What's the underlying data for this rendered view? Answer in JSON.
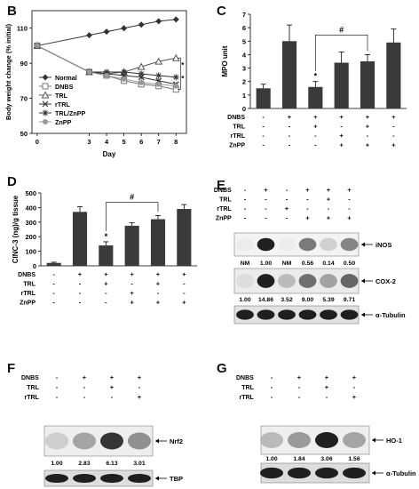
{
  "panels": {
    "B": {
      "label": "B",
      "chart_data": {
        "type": "line",
        "x": [
          0,
          3,
          4,
          5,
          6,
          7,
          8
        ],
        "xlabel": "Day",
        "ylabel": "Body weight change (% initial)",
        "xlim": [
          -0.3,
          8.6
        ],
        "ylim": [
          50,
          120
        ],
        "yticks": [
          50,
          70,
          90,
          110
        ],
        "xticks": [
          0,
          3,
          4,
          5,
          6,
          7,
          8
        ],
        "series": [
          {
            "name": "Normal",
            "marker": "diamond",
            "values": [
              100,
              106,
              108,
              110,
              112,
              114,
              115
            ]
          },
          {
            "name": "DNBS",
            "marker": "square",
            "values": [
              100,
              85,
              83,
              80,
              78,
              77,
              75
            ]
          },
          {
            "name": "TRL",
            "marker": "triangle",
            "values": [
              100,
              85,
              84,
              85,
              88,
              91,
              93
            ]
          },
          {
            "name": "rTRL",
            "marker": "x",
            "values": [
              100,
              85,
              84,
              83,
              82,
              80,
              78
            ]
          },
          {
            "name": "TRL/ZnPP",
            "marker": "star",
            "values": [
              100,
              85,
              85,
              85,
              84,
              83,
              82
            ]
          },
          {
            "name": "ZnPP",
            "marker": "circle",
            "values": [
              100,
              85,
              83,
              81,
              79,
              78,
              77
            ]
          }
        ],
        "annotations": [
          "*",
          "*"
        ]
      }
    },
    "C": {
      "label": "C",
      "chart_data": {
        "type": "bar",
        "ylabel": "MPO unit",
        "ylim": [
          0,
          7
        ],
        "yticks": [
          0,
          1,
          2,
          3,
          4,
          5,
          6,
          7
        ],
        "values": [
          1.5,
          5.0,
          1.6,
          3.4,
          3.5,
          4.9
        ],
        "errors": [
          0.3,
          1.2,
          0.4,
          0.8,
          0.5,
          1.0
        ],
        "star_index": 2,
        "sig_bracket": {
          "from": 2,
          "to": 4,
          "label": "#"
        },
        "treatments": [
          {
            "name": "DNBS",
            "marks": [
              "-",
              "+",
              "+",
              "+",
              "+",
              "+"
            ]
          },
          {
            "name": "TRL",
            "marks": [
              "-",
              "-",
              "+",
              "-",
              "+",
              "-"
            ]
          },
          {
            "name": "rTRL",
            "marks": [
              "-",
              "-",
              "-",
              "+",
              "-",
              "-"
            ]
          },
          {
            "name": "ZnPP",
            "marks": [
              "-",
              "-",
              "-",
              "+",
              "+",
              "+"
            ]
          }
        ]
      }
    },
    "D": {
      "label": "D",
      "chart_data": {
        "type": "bar",
        "ylabel": "CINC-3 (ng)/g tissue",
        "ylim": [
          0,
          500
        ],
        "yticks": [
          0,
          100,
          200,
          300,
          400,
          500
        ],
        "values": [
          20,
          370,
          140,
          275,
          320,
          390
        ],
        "errors": [
          5,
          35,
          25,
          20,
          25,
          30
        ],
        "star_index": 2,
        "sig_bracket": {
          "from": 2,
          "to": 4,
          "label": "#"
        },
        "treatments": [
          {
            "name": "DNBS",
            "marks": [
              "-",
              "+",
              "+",
              "+",
              "+",
              "+"
            ]
          },
          {
            "name": "TRL",
            "marks": [
              "-",
              "-",
              "+",
              "-",
              "+",
              "-"
            ]
          },
          {
            "name": "rTRL",
            "marks": [
              "-",
              "-",
              "-",
              "+",
              "-",
              "-"
            ]
          },
          {
            "name": "ZnPP",
            "marks": [
              "-",
              "-",
              "-",
              "+",
              "+",
              "+"
            ]
          }
        ]
      }
    },
    "E": {
      "label": "E",
      "treatments": [
        {
          "name": "DNBS",
          "marks": [
            "-",
            "+",
            "-",
            "+",
            "+",
            "+"
          ]
        },
        {
          "name": "TRL",
          "marks": [
            "-",
            "-",
            "-",
            "-",
            "+",
            "-"
          ]
        },
        {
          "name": "rTRL",
          "marks": [
            "-",
            "-",
            "+",
            "-",
            "-",
            "-"
          ]
        },
        {
          "name": "ZnPP",
          "marks": [
            "-",
            "-",
            "-",
            "+",
            "+",
            "+"
          ]
        }
      ],
      "bands": [
        {
          "name": "iNOS",
          "intensity": [
            0.0,
            1.0,
            0.0,
            0.56,
            0.14,
            0.5
          ]
        },
        {
          "name": "COX-2",
          "intensity": [
            0.07,
            1.0,
            0.24,
            0.61,
            0.36,
            0.65
          ]
        },
        {
          "name": "α-Tubulin",
          "intensity": [
            1,
            1,
            1,
            1,
            1,
            1
          ]
        }
      ],
      "values_row1": [
        "NM",
        "1.00",
        "NM",
        "0.56",
        "0.14",
        "0.50"
      ],
      "values_row2": [
        "1.00",
        "14.86",
        "3.52",
        "9.00",
        "5.39",
        "9.71"
      ]
    },
    "F": {
      "label": "F",
      "treatments": [
        {
          "name": "DNBS",
          "marks": [
            "-",
            "+",
            "+",
            "+"
          ]
        },
        {
          "name": "TRL",
          "marks": [
            "-",
            "-",
            "+",
            "-"
          ]
        },
        {
          "name": "rTRL",
          "marks": [
            "-",
            "-",
            "-",
            "+"
          ]
        }
      ],
      "bands": [
        {
          "name": "Nrf2",
          "intensity": [
            0.15,
            0.35,
            0.9,
            0.45
          ]
        },
        {
          "name": "TBP",
          "intensity": [
            1,
            1,
            1,
            1
          ]
        }
      ],
      "values": [
        "1.00",
        "2.83",
        "6.13",
        "3.01"
      ]
    },
    "G": {
      "label": "G",
      "treatments": [
        {
          "name": "DNBS",
          "marks": [
            "-",
            "+",
            "+",
            "+"
          ]
        },
        {
          "name": "TRL",
          "marks": [
            "-",
            "-",
            "+",
            "-"
          ]
        },
        {
          "name": "rTRL",
          "marks": [
            "-",
            "-",
            "-",
            "+"
          ]
        }
      ],
      "bands": [
        {
          "name": "HO-1",
          "intensity": [
            0.25,
            0.4,
            1.0,
            0.35
          ]
        },
        {
          "name": "α-Tubulin",
          "intensity": [
            1,
            1,
            1,
            1
          ]
        }
      ],
      "values": [
        "1.00",
        "1.84",
        "3.06",
        "1.56"
      ]
    }
  }
}
